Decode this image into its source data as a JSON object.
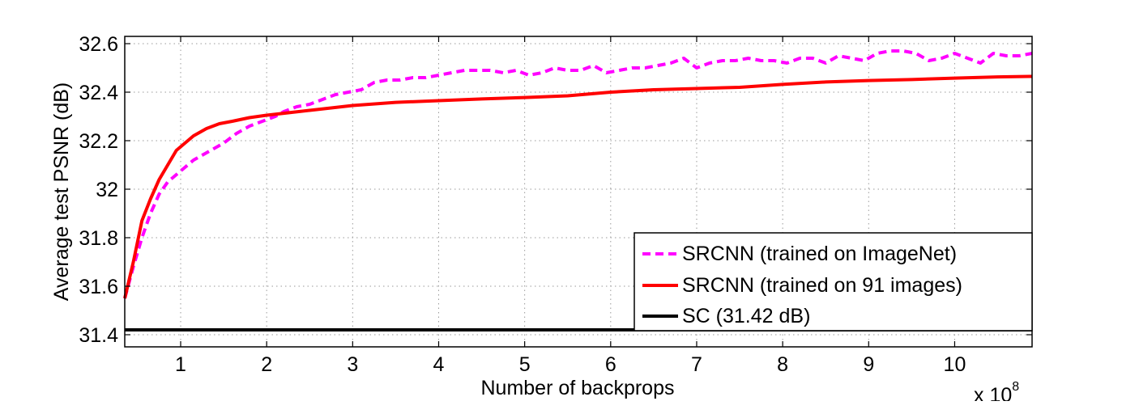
{
  "chart_data": {
    "type": "line",
    "title": "",
    "xlabel": "Number of backprops",
    "ylabel": "Average test PSNR (dB)",
    "x_multiplier_label": "x 10",
    "x_multiplier_exponent": "8",
    "xlim": [
      0.35,
      10.9
    ],
    "ylim": [
      31.35,
      32.63
    ],
    "xticks": [
      1,
      2,
      3,
      4,
      5,
      6,
      7,
      8,
      9,
      10
    ],
    "yticks": [
      31.4,
      31.6,
      31.8,
      32,
      32.2,
      32.4,
      32.6
    ],
    "ytick_labels": [
      "31.4",
      "31.6",
      "31.8",
      "32",
      "32.2",
      "32.4",
      "32.6"
    ],
    "grid": true,
    "legend_position": "bottom-right",
    "series": [
      {
        "name": "SRCNN (trained on ImageNet)",
        "color": "#ff00ff",
        "style": "dashed",
        "x": [
          0.35,
          0.45,
          0.55,
          0.65,
          0.75,
          0.85,
          0.95,
          1.05,
          1.15,
          1.25,
          1.35,
          1.5,
          1.65,
          1.8,
          1.95,
          2.1,
          2.2,
          2.35,
          2.5,
          2.65,
          2.8,
          2.95,
          3.1,
          3.25,
          3.4,
          3.55,
          3.7,
          3.85,
          4.0,
          4.15,
          4.3,
          4.45,
          4.6,
          4.75,
          4.9,
          5.05,
          5.2,
          5.35,
          5.5,
          5.65,
          5.8,
          5.95,
          6.1,
          6.25,
          6.4,
          6.55,
          6.7,
          6.85,
          7.0,
          7.15,
          7.3,
          7.45,
          7.6,
          7.75,
          7.9,
          8.05,
          8.2,
          8.35,
          8.5,
          8.65,
          8.8,
          8.95,
          9.1,
          9.25,
          9.4,
          9.55,
          9.7,
          9.85,
          10.0,
          10.15,
          10.3,
          10.45,
          10.6,
          10.75,
          10.9
        ],
        "y": [
          31.55,
          31.68,
          31.8,
          31.9,
          31.98,
          32.03,
          32.06,
          32.09,
          32.12,
          32.14,
          32.16,
          32.19,
          32.23,
          32.26,
          32.28,
          32.3,
          32.32,
          32.34,
          32.35,
          32.37,
          32.39,
          32.4,
          32.41,
          32.44,
          32.45,
          32.45,
          32.46,
          32.46,
          32.47,
          32.48,
          32.49,
          32.49,
          32.49,
          32.48,
          32.49,
          32.47,
          32.48,
          32.5,
          32.49,
          32.49,
          32.51,
          32.48,
          32.49,
          32.5,
          32.5,
          32.51,
          32.52,
          32.54,
          32.5,
          32.52,
          32.53,
          32.53,
          32.54,
          32.53,
          32.53,
          32.52,
          32.54,
          32.54,
          32.52,
          32.55,
          32.54,
          32.53,
          32.56,
          32.57,
          32.57,
          32.56,
          32.53,
          32.54,
          32.56,
          32.54,
          32.52,
          32.56,
          32.55,
          32.55,
          32.56
        ]
      },
      {
        "name": "SRCNN (trained on 91 images)",
        "color": "#ff0000",
        "style": "solid",
        "x": [
          0.35,
          0.45,
          0.55,
          0.65,
          0.75,
          0.85,
          0.95,
          1.05,
          1.15,
          1.3,
          1.45,
          1.6,
          1.8,
          2.0,
          2.25,
          2.5,
          2.75,
          3.0,
          3.5,
          4.0,
          4.5,
          5.0,
          5.5,
          6.0,
          6.5,
          7.0,
          7.5,
          8.0,
          8.5,
          9.0,
          9.5,
          10.0,
          10.5,
          10.9
        ],
        "y": [
          31.55,
          31.7,
          31.87,
          31.96,
          32.04,
          32.1,
          32.16,
          32.19,
          32.22,
          32.25,
          32.27,
          32.28,
          32.295,
          32.305,
          32.315,
          32.325,
          32.335,
          32.345,
          32.358,
          32.365,
          32.372,
          32.378,
          32.385,
          32.4,
          32.41,
          32.415,
          32.42,
          32.432,
          32.442,
          32.448,
          32.452,
          32.458,
          32.463,
          32.465
        ]
      },
      {
        "name": "SC (31.42 dB)",
        "color": "#000000",
        "style": "solid",
        "x": [
          0.35,
          10.9
        ],
        "y": [
          31.42,
          31.42
        ]
      }
    ]
  }
}
